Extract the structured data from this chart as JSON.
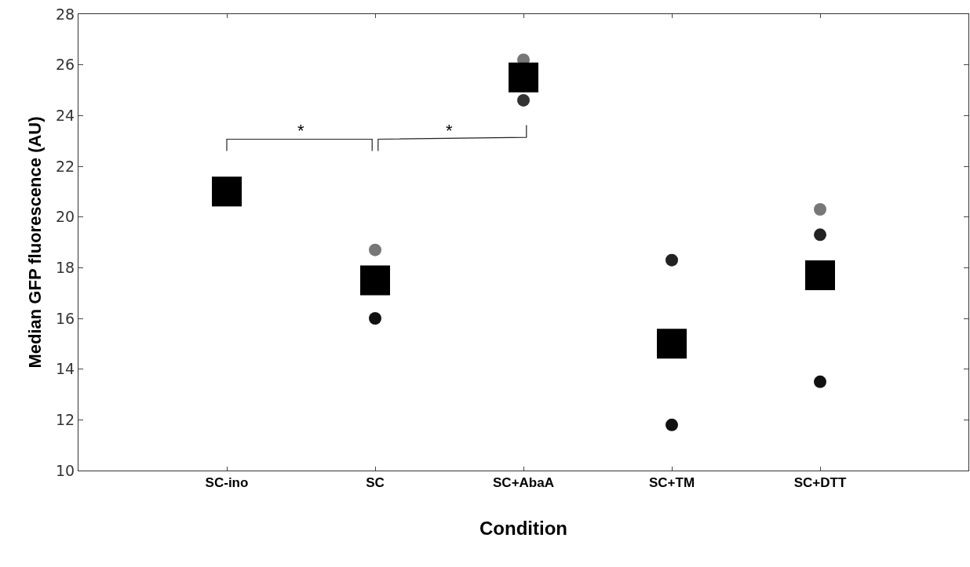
{
  "chart_data": {
    "type": "scatter",
    "xlabel": "Condition",
    "ylabel": "Median GFP fluorescence (AU)",
    "categories": [
      "SC-ino",
      "SC",
      "SC+AbaA",
      "SC+TM",
      "SC+DTT"
    ],
    "series": [
      {
        "marker": "circle",
        "x": [
          "SC",
          "SC",
          "SC+AbaA",
          "SC+AbaA",
          "SC+TM",
          "SC+TM",
          "SC+DTT",
          "SC+DTT",
          "SC+DTT"
        ],
        "values": [
          18.7,
          16.0,
          26.2,
          24.6,
          18.3,
          11.8,
          20.3,
          19.3,
          13.5
        ],
        "colors": [
          "#777777",
          "#111111",
          "#777777",
          "#333333",
          "#222222",
          "#111111",
          "#777777",
          "#222222",
          "#111111"
        ]
      },
      {
        "marker": "square",
        "color": "#000000",
        "values": [
          21.0,
          17.5,
          25.5,
          15.0,
          17.7
        ]
      }
    ],
    "ylim": [
      10,
      28
    ],
    "yticks": [
      10,
      12,
      14,
      16,
      18,
      20,
      22,
      24,
      26,
      28
    ],
    "grid": false,
    "annotations": [
      "*",
      "*"
    ]
  }
}
